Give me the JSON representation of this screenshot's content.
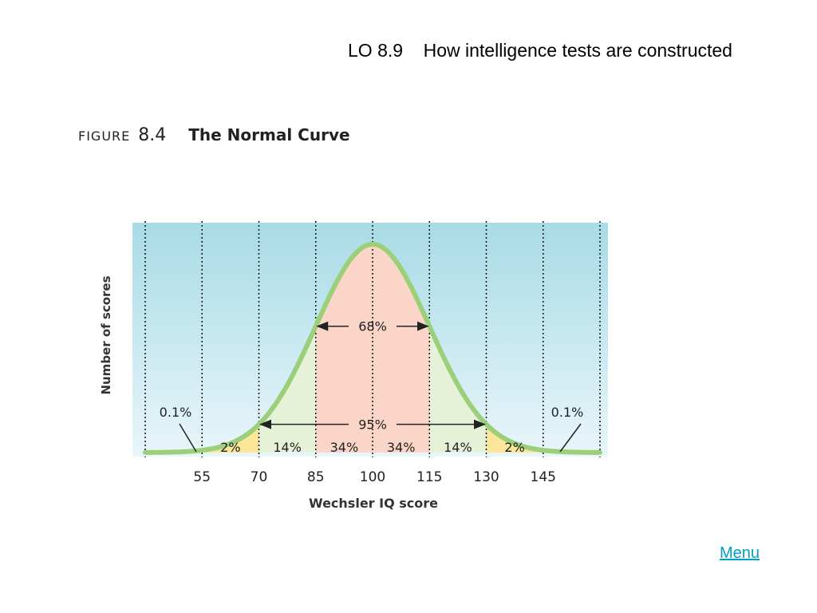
{
  "header": {
    "title": "LO 8.9    How intelligence tests are constructed"
  },
  "figure": {
    "label_word": "FIGURE",
    "label_number": "8.4",
    "title": "The Normal Curve"
  },
  "chart_data": {
    "type": "area",
    "title": "The Normal Curve",
    "xlabel": "Wechsler IQ score",
    "ylabel": "Number of scores",
    "mean": 100,
    "sd": 15,
    "xlim": [
      40,
      160
    ],
    "x_ticks": [
      55,
      70,
      85,
      100,
      115,
      130,
      145
    ],
    "grid": "vertical dotted lines at each standard deviation",
    "bands": [
      {
        "from": 40,
        "to": 55,
        "label": "",
        "percent": 0.1,
        "color": "#f08080"
      },
      {
        "from": 55,
        "to": 70,
        "label": "2%",
        "percent": 2,
        "color": "#fbe69a"
      },
      {
        "from": 70,
        "to": 85,
        "label": "14%",
        "percent": 14,
        "color": "#e6f2d8"
      },
      {
        "from": 85,
        "to": 100,
        "label": "34%",
        "percent": 34,
        "color": "#fbd6c8"
      },
      {
        "from": 100,
        "to": 115,
        "label": "34%",
        "percent": 34,
        "color": "#fbd6c8"
      },
      {
        "from": 115,
        "to": 130,
        "label": "14%",
        "percent": 14,
        "color": "#e6f2d8"
      },
      {
        "from": 130,
        "to": 145,
        "label": "2%",
        "percent": 2,
        "color": "#fbe69a"
      },
      {
        "from": 145,
        "to": 160,
        "label": "",
        "percent": 0.1,
        "color": "#f08080"
      }
    ],
    "annotations": [
      {
        "label": "68%",
        "from": 85,
        "to": 115
      },
      {
        "label": "95%",
        "from": 70,
        "to": 130
      }
    ],
    "tail_labels": [
      "0.1%",
      "0.1%"
    ],
    "colors": {
      "curve": "#9ccf7a",
      "background_top": "#a8dbe6",
      "background_bottom": "#e9f6fa"
    }
  },
  "menu": {
    "label": "Menu"
  }
}
